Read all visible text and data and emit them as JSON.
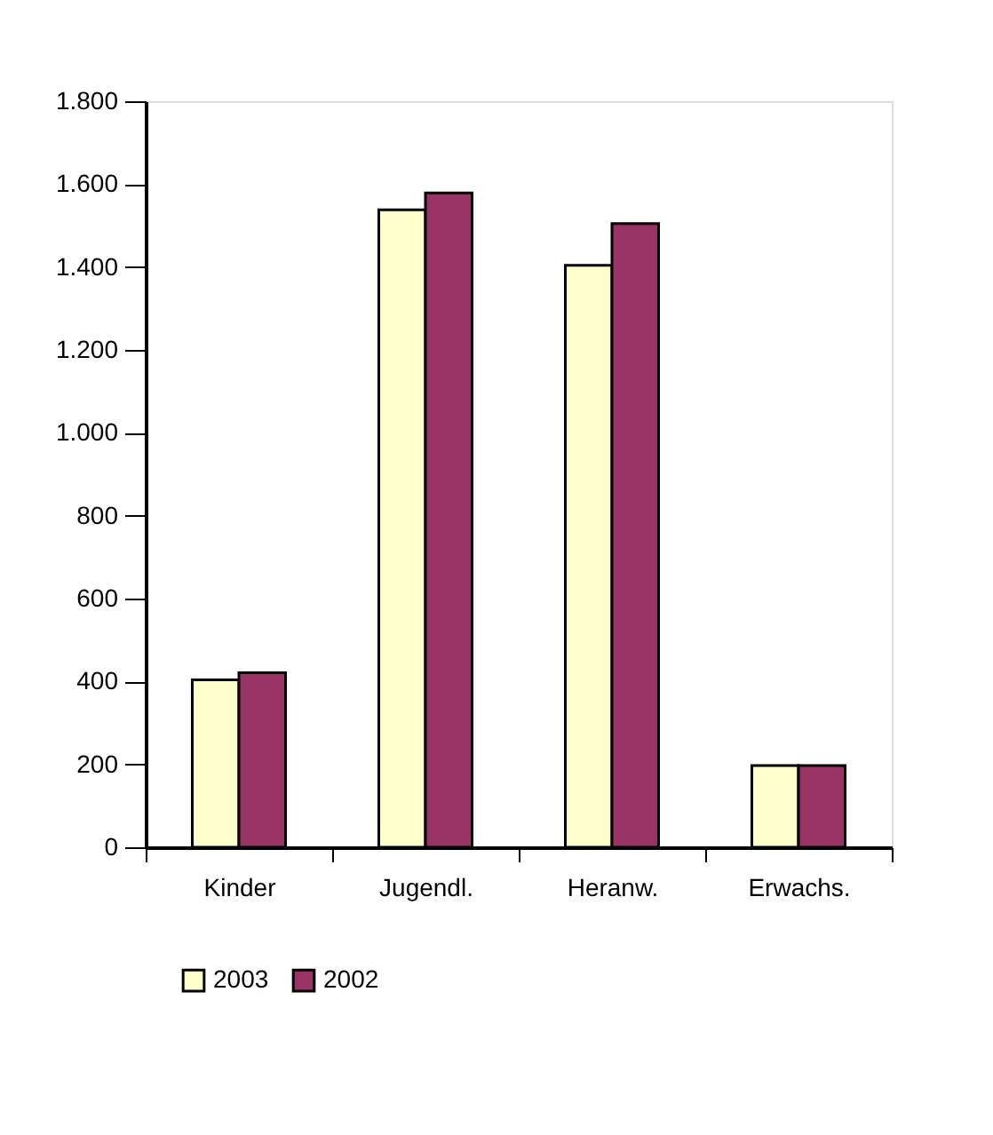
{
  "chart_data": {
    "type": "bar",
    "categories": [
      "Kinder",
      "Jugendl.",
      "Heranw.",
      "Erwachs."
    ],
    "series": [
      {
        "name": "2003",
        "color": "#ffffcc",
        "values": [
          404,
          1538,
          1404,
          197
        ]
      },
      {
        "name": "2002",
        "color": "#993366",
        "values": [
          421,
          1579,
          1505,
          197
        ]
      }
    ],
    "ylim": [
      0,
      1800
    ],
    "yticks": [
      0,
      {
        "value": 200,
        "label": "200"
      },
      {
        "value": 400,
        "label": "400"
      },
      {
        "value": 600,
        "label": "600"
      },
      {
        "value": 800,
        "label": "800"
      },
      {
        "value": 1000,
        "label": "1.000"
      },
      {
        "value": 1200,
        "label": "1.200"
      },
      {
        "value": 1400,
        "label": "1.400"
      },
      {
        "value": 1600,
        "label": "1.600"
      },
      {
        "value": 1800,
        "label": "1.800"
      }
    ],
    "grid": false,
    "legend": "bottom"
  }
}
